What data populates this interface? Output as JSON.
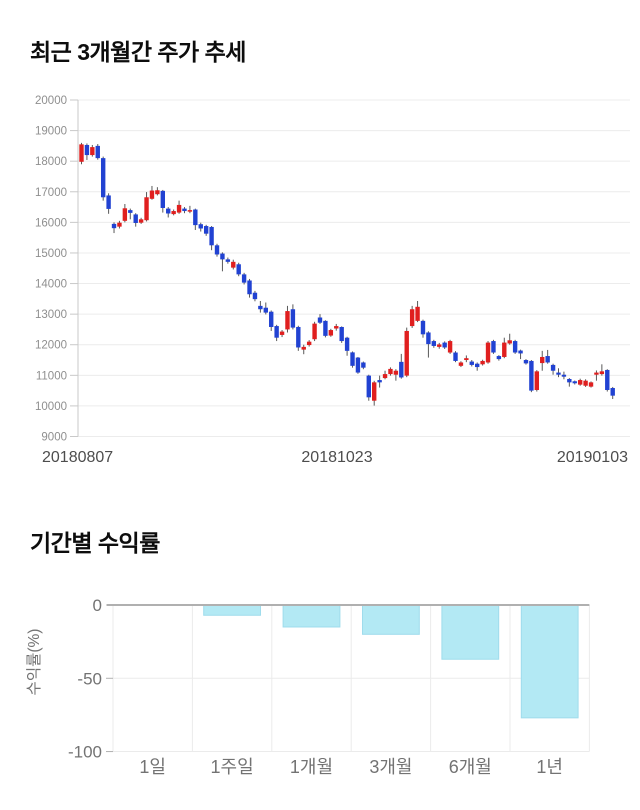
{
  "price_section": {
    "title": "최근 3개월간 주가 추세"
  },
  "returns_section": {
    "title": "기간별 수익률"
  },
  "chart_data": [
    {
      "type": "candlestick",
      "title": "최근 3개월간 주가 추세",
      "ylim": [
        9000,
        20000
      ],
      "y_ticks": [
        20000,
        19000,
        18000,
        17000,
        16000,
        15000,
        14000,
        13000,
        12000,
        11000,
        10000,
        9000
      ],
      "x_tick_labels": [
        "20180807",
        "20181023",
        "20190103"
      ],
      "colors": {
        "up": "#e01f1f",
        "down": "#2142d2",
        "wick": "#595959",
        "grid": "#ececec",
        "axis": "#c9c9c9",
        "tick_text": "#8f8f8f",
        "date_text": "#4d4d4d"
      },
      "candles": [
        [
          17980,
          18600,
          17900,
          18550
        ],
        [
          18530,
          18580,
          18040,
          18200
        ],
        [
          18200,
          18530,
          18150,
          18460
        ],
        [
          18500,
          18560,
          18050,
          18100
        ],
        [
          18100,
          18150,
          16710,
          16820
        ],
        [
          16880,
          16950,
          16280,
          16440
        ],
        [
          15950,
          16000,
          15650,
          15810
        ],
        [
          15860,
          16050,
          15800,
          15990
        ],
        [
          16050,
          16600,
          16000,
          16460
        ],
        [
          16400,
          16450,
          16100,
          16310
        ],
        [
          16260,
          16300,
          15860,
          15980
        ],
        [
          15990,
          16150,
          15950,
          16100
        ],
        [
          16070,
          16990,
          16030,
          16820
        ],
        [
          16770,
          17190,
          16740,
          17040
        ],
        [
          16920,
          17150,
          16880,
          17050
        ],
        [
          17030,
          17060,
          16320,
          16470
        ],
        [
          16450,
          16500,
          16160,
          16290
        ],
        [
          16270,
          16420,
          16230,
          16370
        ],
        [
          16320,
          16710,
          16280,
          16570
        ],
        [
          16450,
          16500,
          16300,
          16370
        ],
        [
          16350,
          16540,
          16300,
          16400
        ],
        [
          16420,
          16450,
          15750,
          15910
        ],
        [
          15940,
          15990,
          15700,
          15800
        ],
        [
          15880,
          15920,
          15560,
          15630
        ],
        [
          15850,
          15880,
          15090,
          15250
        ],
        [
          15250,
          15300,
          14880,
          14950
        ],
        [
          14980,
          15020,
          14400,
          14790
        ],
        [
          14790,
          14850,
          14650,
          14710
        ],
        [
          14520,
          14780,
          14460,
          14710
        ],
        [
          14630,
          14680,
          14240,
          14300
        ],
        [
          14300,
          14350,
          13970,
          14030
        ],
        [
          14100,
          14150,
          13540,
          13650
        ],
        [
          13700,
          13760,
          13420,
          13490
        ],
        [
          13270,
          13430,
          13050,
          13160
        ],
        [
          13210,
          13380,
          12990,
          13050
        ],
        [
          13080,
          13120,
          12450,
          12580
        ],
        [
          12610,
          12650,
          12120,
          12230
        ],
        [
          12320,
          12480,
          12250,
          12430
        ],
        [
          12500,
          13270,
          12400,
          13100
        ],
        [
          13160,
          13320,
          12500,
          12560
        ],
        [
          12580,
          12620,
          11800,
          11910
        ],
        [
          11840,
          12000,
          11690,
          11930
        ],
        [
          11990,
          12150,
          11940,
          12100
        ],
        [
          12180,
          12750,
          12120,
          12690
        ],
        [
          12890,
          13000,
          12680,
          12720
        ],
        [
          12780,
          12800,
          12240,
          12290
        ],
        [
          12300,
          12520,
          12260,
          12480
        ],
        [
          12530,
          12680,
          12460,
          12610
        ],
        [
          12580,
          12600,
          12060,
          12120
        ],
        [
          12230,
          12260,
          11640,
          11800
        ],
        [
          11750,
          11780,
          11250,
          11310
        ],
        [
          11580,
          11600,
          11050,
          11090
        ],
        [
          11420,
          11450,
          11200,
          11250
        ],
        [
          10990,
          11020,
          10170,
          10280
        ],
        [
          10170,
          10820,
          10010,
          10770
        ],
        [
          10845,
          10990,
          10600,
          10770
        ],
        [
          10910,
          11150,
          10870,
          11040
        ],
        [
          11040,
          11260,
          10990,
          11210
        ],
        [
          11020,
          11200,
          10825,
          11150
        ],
        [
          11440,
          11700,
          10890,
          10930
        ],
        [
          10990,
          12560,
          10940,
          12450
        ],
        [
          12610,
          13270,
          12550,
          13160
        ],
        [
          12780,
          13430,
          12740,
          13240
        ],
        [
          12780,
          12820,
          12230,
          12340
        ],
        [
          12400,
          12440,
          11580,
          12020
        ],
        [
          12120,
          12160,
          11900,
          11960
        ],
        [
          11930,
          12060,
          11870,
          12010
        ],
        [
          12070,
          12110,
          11860,
          11910
        ],
        [
          11745,
          12160,
          11700,
          12120
        ],
        [
          11745,
          11790,
          11430,
          11470
        ],
        [
          11310,
          11460,
          11270,
          11420
        ],
        [
          11500,
          11650,
          11430,
          11560
        ],
        [
          11450,
          11500,
          11290,
          11340
        ],
        [
          11380,
          11420,
          11150,
          11270
        ],
        [
          11360,
          11510,
          11320,
          11470
        ],
        [
          11420,
          12120,
          11380,
          12070
        ],
        [
          12120,
          12160,
          11700,
          11745
        ],
        [
          11630,
          11660,
          11480,
          11530
        ],
        [
          11600,
          12230,
          11560,
          12070
        ],
        [
          12040,
          12360,
          12000,
          12145
        ],
        [
          12120,
          12160,
          11700,
          11745
        ],
        [
          11810,
          11840,
          11530,
          11715
        ],
        [
          11500,
          11530,
          11350,
          11390
        ],
        [
          11470,
          11500,
          10450,
          10500
        ],
        [
          10520,
          11170,
          10470,
          11130
        ],
        [
          11400,
          11800,
          11150,
          11600
        ],
        [
          11630,
          11830,
          11380,
          11420
        ],
        [
          11340,
          11380,
          11020,
          11150
        ],
        [
          11090,
          11230,
          10940,
          11020
        ],
        [
          11020,
          11120,
          10870,
          10955
        ],
        [
          10880,
          10910,
          10630,
          10770
        ],
        [
          10805,
          10830,
          10700,
          10740
        ],
        [
          10695,
          10890,
          10660,
          10845
        ],
        [
          10660,
          10870,
          10620,
          10825
        ],
        [
          10630,
          10800,
          10600,
          10770
        ],
        [
          11020,
          11160,
          10825,
          11090
        ],
        [
          11040,
          11360,
          10990,
          11130
        ],
        [
          11175,
          11200,
          10470,
          10520
        ],
        [
          10585,
          10620,
          10225,
          10335
        ]
      ]
    },
    {
      "type": "bar",
      "title": "기간별 수익률",
      "categories": [
        "1일",
        "1주일",
        "1개월",
        "3개월",
        "6개월",
        "1년"
      ],
      "values": [
        0,
        -7,
        -15,
        -20,
        -37,
        -77
      ],
      "ylabel": "수익률(%)",
      "ylim": [
        -100,
        0
      ],
      "y_ticks": [
        0,
        -50,
        -100
      ],
      "grid": true,
      "bar_color": "#b3e9f4",
      "bar_border_color": "#9fdcec",
      "axis_color": "#b0b0b0",
      "grid_color": "#ebebeb",
      "label_color": "#737373"
    }
  ]
}
